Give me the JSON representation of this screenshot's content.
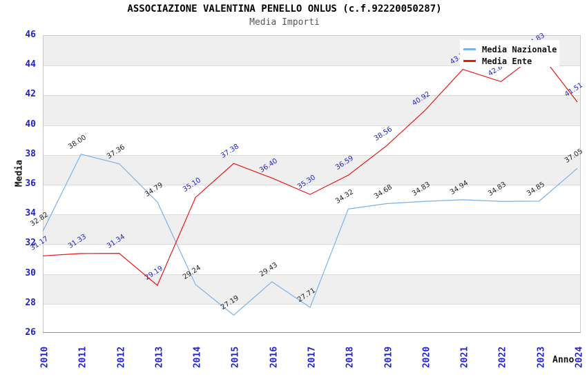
{
  "title": "ASSOCIAZIONE VALENTINA PENELLO ONLUS (c.f.92220050287)",
  "subtitle": "Media Importi",
  "axes": {
    "y_label": "Media",
    "x_label": "Anno",
    "y_ticks": [
      "46",
      "44",
      "42",
      "40",
      "38",
      "36",
      "34",
      "32",
      "30",
      "28",
      "26"
    ],
    "x_ticks": [
      "2010",
      "2011",
      "2012",
      "2013",
      "2014",
      "2015",
      "2016",
      "2017",
      "2018",
      "2019",
      "2020",
      "2021",
      "2022",
      "2023",
      "2024"
    ]
  },
  "legend": {
    "position": "top-right",
    "items": [
      {
        "label": "Media Nazionale",
        "swatch_color": "#7AB3E6"
      },
      {
        "label": "Media Ente",
        "swatch_color": "#EE1414"
      }
    ]
  },
  "chart_data": {
    "type": "line",
    "title": "ASSOCIAZIONE VALENTINA PENELLO ONLUS (c.f.92220050287)",
    "subtitle": "Media Importi",
    "xlabel": "Anno",
    "ylabel": "Media",
    "ylim": [
      26,
      46
    ],
    "ytick_step": 2,
    "grid": "alternating-horizontal-bands",
    "legend_position": "top-right",
    "x": [
      "2010",
      "2011",
      "2012",
      "2013",
      "2014",
      "2015",
      "2016",
      "2017",
      "2018",
      "2019",
      "2020",
      "2021",
      "2022",
      "2023",
      "2024"
    ],
    "series": [
      {
        "name": "Media Nazionale",
        "color": "#7AB3E6",
        "label_color": "#222222",
        "values": [
          32.82,
          38.0,
          37.36,
          34.79,
          29.24,
          27.19,
          29.43,
          27.71,
          34.32,
          34.68,
          34.83,
          34.94,
          34.83,
          34.85,
          37.05
        ],
        "labels": [
          "32.82",
          "38.00",
          "37.36",
          "34.79",
          "29.24",
          "27.19",
          "29.43",
          "27.71",
          "34.32",
          "34.68",
          "34.83",
          "34.94",
          "34.83",
          "34.85",
          "37.05"
        ]
      },
      {
        "name": "Media Ente",
        "color": "#EE1414",
        "label_color": "#2222CC",
        "values": [
          31.17,
          31.33,
          31.34,
          29.19,
          35.1,
          37.38,
          36.4,
          35.3,
          36.59,
          38.56,
          40.92,
          43.7,
          42.88,
          44.83,
          41.51
        ],
        "labels": [
          "31.17",
          "31.33",
          "31.34",
          "29.19",
          "35.10",
          "37.38",
          "36.40",
          "35.30",
          "36.59",
          "38.56",
          "40.92",
          "43.70",
          "42.88",
          "44.83",
          "41.51"
        ]
      }
    ]
  },
  "colors": {
    "band_gray": "#EFEFEF",
    "gridline": "#DCDCDC",
    "tick_label_blue": "#2222CC",
    "plot_border": "#C9C9C9",
    "bottom_axis": "#8F8F8F",
    "subtitle_gray": "#555555"
  }
}
